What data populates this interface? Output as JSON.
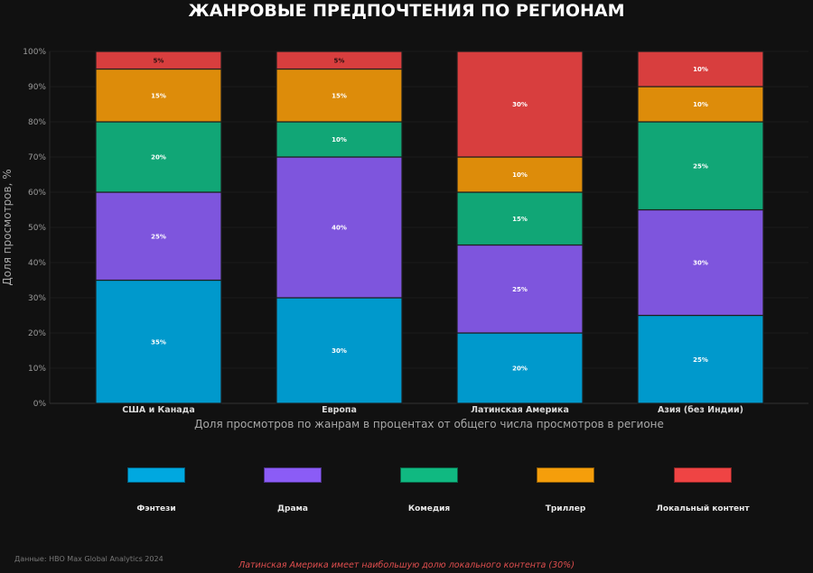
{
  "chart_data": {
    "type": "bar",
    "stacked": true,
    "title": "ЖАНРОВЫЕ ПРЕДПОЧТЕНИЯ ПО РЕГИОНАМ",
    "xlabel": "Доля просмотров по жанрам в процентах от общего числа просмотров в регионе",
    "ylabel": "Доля просмотров, %",
    "ylim": [
      0,
      100
    ],
    "yticks": [
      "0%",
      "10%",
      "20%",
      "30%",
      "40%",
      "50%",
      "60%",
      "70%",
      "80%",
      "90%",
      "100%"
    ],
    "grid": true,
    "legend_position": "bottom",
    "categories": [
      "США и Канада",
      "Европа",
      "Латинская Америка",
      "Азия (без Индии)"
    ],
    "series": [
      {
        "name": "Фэнтези",
        "color": "#0099cc",
        "legend_color": "#00a8e0",
        "values": [
          35,
          30,
          20,
          25
        ],
        "labels": [
          "35%",
          "30%",
          "20%",
          "25%"
        ]
      },
      {
        "name": "Драма",
        "color": "#7e55dd",
        "legend_color": "#8b5cf6",
        "values": [
          25,
          40,
          25,
          30
        ],
        "labels": [
          "25%",
          "40%",
          "25%",
          "30%"
        ]
      },
      {
        "name": "Комедия",
        "color": "#11a676",
        "legend_color": "#10b981",
        "values": [
          20,
          10,
          15,
          25
        ],
        "labels": [
          "20%",
          "10%",
          "15%",
          "25%"
        ]
      },
      {
        "name": "Триллер",
        "color": "#dd8c0a",
        "legend_color": "#f59e0b",
        "values": [
          15,
          15,
          10,
          10
        ],
        "labels": [
          "15%",
          "15%",
          "10%",
          "10%"
        ]
      },
      {
        "name": "Локальный контент",
        "color": "#d83e3e",
        "legend_color": "#ef4444",
        "values": [
          5,
          5,
          30,
          10
        ],
        "labels": [
          "5%",
          "5%",
          "30%",
          "10%"
        ]
      }
    ],
    "source": "Данные: HBO Max Global Analytics 2024",
    "annotation": "Латинская Америка имеет наибольшую долю локального контента (30%)"
  }
}
